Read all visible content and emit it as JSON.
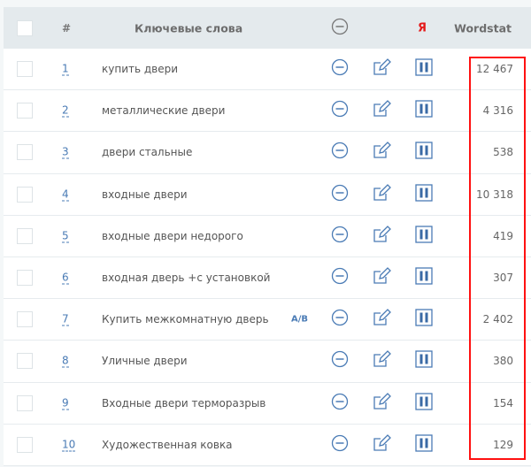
{
  "header": {
    "hash": "#",
    "keywords": "Ключевые слова",
    "yandex": "Я",
    "wordstat": "Wordstat"
  },
  "rows": [
    {
      "num": "1",
      "keyword": "купить двери",
      "wordstat": "12 467",
      "ab": ""
    },
    {
      "num": "2",
      "keyword": "металлические двери",
      "wordstat": "4 316",
      "ab": ""
    },
    {
      "num": "3",
      "keyword": "двери стальные",
      "wordstat": "538",
      "ab": ""
    },
    {
      "num": "4",
      "keyword": "входные двери",
      "wordstat": "10 318",
      "ab": ""
    },
    {
      "num": "5",
      "keyword": "входные двери недорого",
      "wordstat": "419",
      "ab": ""
    },
    {
      "num": "6",
      "keyword": "входная дверь +с установкой",
      "wordstat": "307",
      "ab": ""
    },
    {
      "num": "7",
      "keyword": "Купить межкомнатную дверь",
      "wordstat": "2 402",
      "ab": "A/B"
    },
    {
      "num": "8",
      "keyword": "Уличные двери",
      "wordstat": "380",
      "ab": ""
    },
    {
      "num": "9",
      "keyword": "Входные двери терморазрыв",
      "wordstat": "154",
      "ab": ""
    },
    {
      "num": "10",
      "keyword": "Художественная ковка",
      "wordstat": "129",
      "ab": ""
    }
  ],
  "colors": {
    "accent": "#4a7bb5",
    "highlight": "#ff1111",
    "yandex": "#e41b1b"
  }
}
